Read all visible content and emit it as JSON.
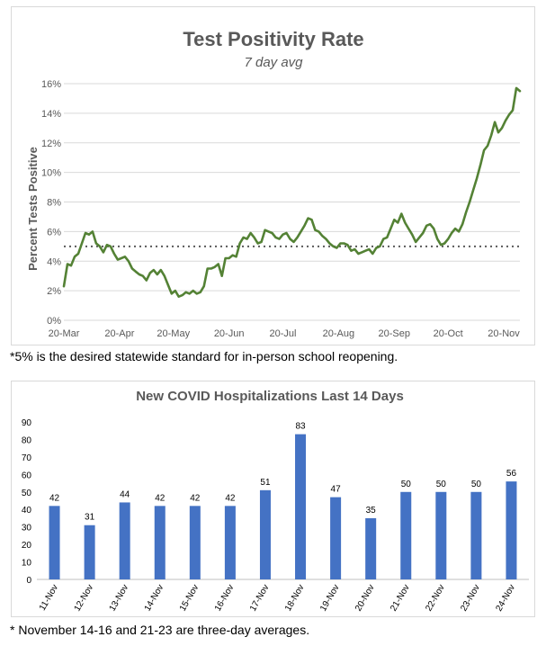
{
  "colors": {
    "line": "#548235",
    "bar": "#4472c4",
    "gridline": "#d9d9d9",
    "axis_text": "#595959",
    "title_text": "#595959",
    "reference_line": "#595959"
  },
  "chart_data": [
    {
      "type": "line",
      "title": "Test Positivity Rate",
      "subtitle": "7 day avg",
      "xlabel": "",
      "ylabel": "Percent Tests Positive",
      "ylim": [
        0,
        16
      ],
      "yticks": [
        0,
        2,
        4,
        6,
        8,
        10,
        12,
        14,
        16
      ],
      "ytick_labels": [
        "0%",
        "2%",
        "4%",
        "6%",
        "8%",
        "10%",
        "12%",
        "14%",
        "16%"
      ],
      "xlim": [
        0,
        254
      ],
      "xticks": [
        0,
        31,
        61,
        92,
        122,
        153,
        184,
        214,
        245
      ],
      "xtick_labels": [
        "20-Mar",
        "20-Apr",
        "20-May",
        "20-Jun",
        "20-Jul",
        "20-Aug",
        "20-Sep",
        "20-Oct",
        "20-Nov"
      ],
      "grid": true,
      "reference_line": {
        "value": 5,
        "style": "dotted"
      },
      "series": [
        {
          "name": "Test Positivity Rate",
          "x": [
            0,
            2,
            4,
            6,
            8,
            10,
            12,
            14,
            16,
            18,
            20,
            22,
            24,
            26,
            28,
            30,
            32,
            34,
            36,
            38,
            40,
            42,
            44,
            46,
            48,
            50,
            52,
            54,
            56,
            58,
            60,
            62,
            64,
            66,
            68,
            70,
            72,
            74,
            76,
            78,
            80,
            82,
            84,
            86,
            88,
            90,
            92,
            94,
            96,
            98,
            100,
            102,
            104,
            106,
            108,
            110,
            112,
            114,
            116,
            118,
            120,
            122,
            124,
            126,
            128,
            130,
            132,
            134,
            136,
            138,
            140,
            142,
            144,
            146,
            148,
            150,
            152,
            154,
            156,
            158,
            160,
            162,
            164,
            166,
            168,
            170,
            172,
            174,
            176,
            178,
            180,
            182,
            184,
            186,
            188,
            190,
            192,
            194,
            196,
            198,
            200,
            202,
            204,
            206,
            208,
            210,
            212,
            214,
            216,
            218,
            220,
            222,
            224,
            226,
            228,
            230,
            232,
            234,
            236,
            238,
            240,
            242,
            244,
            246,
            248,
            250,
            252,
            254
          ],
          "values": [
            2.3,
            3.8,
            3.7,
            4.3,
            4.5,
            5.2,
            5.9,
            5.8,
            6.0,
            5.2,
            5.0,
            4.6,
            5.1,
            5.0,
            4.5,
            4.1,
            4.2,
            4.3,
            4.0,
            3.5,
            3.3,
            3.1,
            3.0,
            2.7,
            3.2,
            3.4,
            3.1,
            3.4,
            3.0,
            2.4,
            1.8,
            2.0,
            1.6,
            1.7,
            1.9,
            1.8,
            2.0,
            1.8,
            1.9,
            2.3,
            3.5,
            3.5,
            3.6,
            3.8,
            3.0,
            4.2,
            4.2,
            4.4,
            4.3,
            5.2,
            5.6,
            5.5,
            5.9,
            5.6,
            5.2,
            5.3,
            6.1,
            6.0,
            5.9,
            5.6,
            5.5,
            5.8,
            5.9,
            5.5,
            5.3,
            5.6,
            6.0,
            6.4,
            6.9,
            6.8,
            6.1,
            6.0,
            5.7,
            5.5,
            5.2,
            5.0,
            4.9,
            5.2,
            5.2,
            5.1,
            4.7,
            4.8,
            4.5,
            4.6,
            4.7,
            4.8,
            4.5,
            4.9,
            5.0,
            5.5,
            5.6,
            6.2,
            6.8,
            6.6,
            7.2,
            6.6,
            6.2,
            5.8,
            5.3,
            5.6,
            5.9,
            6.4,
            6.5,
            6.2,
            5.5,
            5.1,
            5.2,
            5.5,
            5.9,
            6.2,
            6.0,
            6.5,
            7.3,
            8.0,
            8.8,
            9.6,
            10.5,
            11.5,
            11.8,
            12.5,
            13.4,
            12.7,
            13.0,
            13.5,
            13.9,
            14.2,
            15.7,
            15.5
          ]
        }
      ]
    },
    {
      "type": "bar",
      "title": "New COVID Hospitalizations Last 14 Days",
      "xlabel": "",
      "ylabel": "",
      "ylim": [
        0,
        90
      ],
      "yticks": [
        0,
        10,
        20,
        30,
        40,
        50,
        60,
        70,
        80,
        90
      ],
      "ytick_labels": [
        "0",
        "10",
        "20",
        "30",
        "40",
        "50",
        "60",
        "70",
        "80",
        "90"
      ],
      "grid": false,
      "categories": [
        "11-Nov",
        "12-Nov",
        "13-Nov",
        "14-Nov",
        "15-Nov",
        "16-Nov",
        "17-Nov",
        "18-Nov",
        "19-Nov",
        "20-Nov",
        "21-Nov",
        "22-Nov",
        "23-Nov",
        "24-Nov"
      ],
      "values": [
        42,
        31,
        44,
        42,
        42,
        42,
        51,
        83,
        47,
        35,
        50,
        50,
        50,
        56
      ],
      "value_labels": [
        "42",
        "31",
        "44",
        "42",
        "42",
        "42",
        "51",
        "83",
        "47",
        "35",
        "50",
        "50",
        "50",
        "56"
      ]
    }
  ],
  "notes": {
    "positivity_footnote": "*5% is the desired statewide standard for in-person school reopening.",
    "hospitalization_footnote": "* November 14-16 and 21-23 are three-day averages."
  }
}
